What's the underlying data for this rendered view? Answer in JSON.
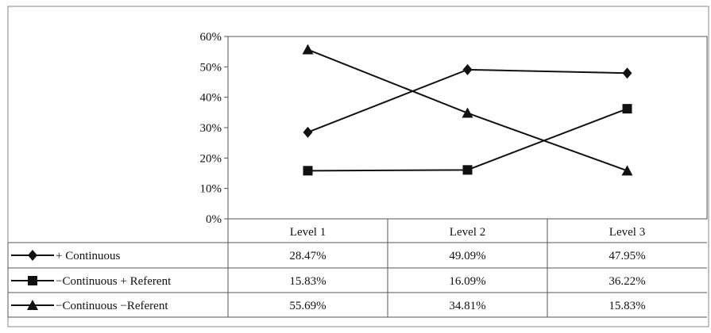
{
  "chart_data": {
    "type": "line",
    "categories": [
      "Level 1",
      "Level 2",
      "Level 3"
    ],
    "ylim": [
      0,
      60
    ],
    "y_ticks": [
      "0%",
      "10%",
      "20%",
      "30%",
      "40%",
      "50%",
      "60%"
    ],
    "grid": false,
    "legend": "data-table-left",
    "series": [
      {
        "name": "+ Continuous",
        "marker": "diamond",
        "values": [
          28.47,
          49.09,
          47.95
        ],
        "labels": [
          "28.47%",
          "49.09%",
          "47.95%"
        ]
      },
      {
        "name": "−Continuous  + Referent",
        "marker": "square",
        "values": [
          15.83,
          16.09,
          36.22
        ],
        "labels": [
          "15.83%",
          "16.09%",
          "36.22%"
        ]
      },
      {
        "name": "−Continuous  −Referent",
        "marker": "triangle",
        "values": [
          55.69,
          34.81,
          15.83
        ],
        "labels": [
          "55.69%",
          "34.81%",
          "15.83%"
        ]
      }
    ],
    "colors": {
      "line": "#111111",
      "frame": "#555555"
    }
  }
}
